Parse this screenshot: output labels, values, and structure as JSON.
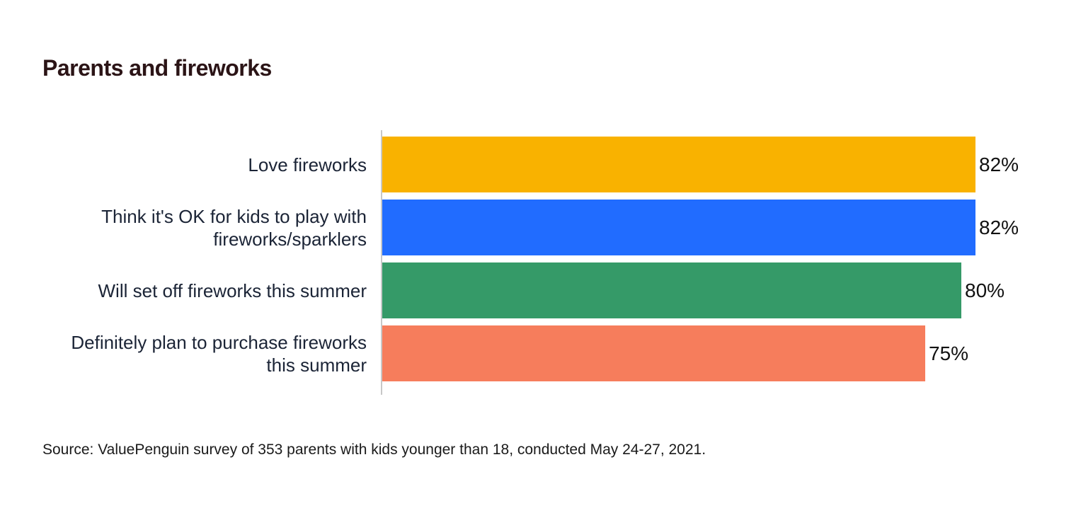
{
  "title": "Parents and fireworks",
  "source": "Source: ValuePenguin survey of 353 parents with kids younger than 18, conducted May 24-27, 2021.",
  "chart_data": {
    "type": "bar",
    "orientation": "horizontal",
    "title": "Parents and fireworks",
    "categories": [
      "Love fireworks",
      "Think it's OK for kids to play with fireworks/sparklers",
      "Will set off fireworks this summer",
      "Definitely plan to purchase fireworks this summer"
    ],
    "values": [
      82,
      82,
      80,
      75
    ],
    "value_labels": [
      "82%",
      "82%",
      "80%",
      "75%"
    ],
    "colors": [
      "#f9b200",
      "#216cff",
      "#359a68",
      "#f67d5c"
    ],
    "xlabel": "",
    "ylabel": "",
    "xlim": [
      0,
      100
    ],
    "grid": false,
    "legend": null,
    "annotation": "Source: ValuePenguin survey of 353 parents with kids younger than 18, conducted May 24-27, 2021."
  },
  "rows": [
    {
      "label_lines": [
        "Love fireworks"
      ],
      "value": 82,
      "display": "82%",
      "color": "#f9b200"
    },
    {
      "label_lines": [
        "Think it's OK for kids to play with",
        "fireworks/sparklers"
      ],
      "value": 82,
      "display": "82%",
      "color": "#216cff"
    },
    {
      "label_lines": [
        "Will set off fireworks this summer"
      ],
      "value": 80,
      "display": "80%",
      "color": "#359a68"
    },
    {
      "label_lines": [
        "Definitely plan to purchase fireworks",
        "this summer"
      ],
      "value": 75,
      "display": "75%",
      "color": "#f67d5c"
    }
  ]
}
